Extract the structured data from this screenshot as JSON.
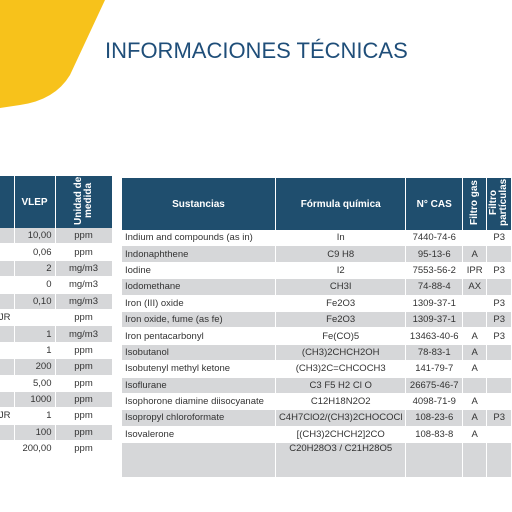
{
  "title": "INFORMACIONES TÉCNICAS",
  "left_table": {
    "headers": [
      "*",
      "VLEP",
      "Unidad de medida"
    ],
    "rows": [
      [
        null,
        "10,00",
        "ppm"
      ],
      [
        null,
        "0,06",
        "ppm"
      ],
      [
        null,
        "2",
        "mg/m3"
      ],
      [
        null,
        "0",
        "mg/m3"
      ],
      [
        null,
        "0,10",
        "mg/m3"
      ],
      [
        "JR",
        null,
        "ppm"
      ],
      [
        null,
        "1",
        "mg/m3"
      ],
      [
        null,
        "1",
        "ppm"
      ],
      [
        null,
        "200",
        "ppm"
      ],
      [
        null,
        "5,00",
        "ppm"
      ],
      [
        null,
        "1000",
        "ppm"
      ],
      [
        "JR",
        "1",
        "ppm"
      ],
      [
        null,
        "100",
        "ppm"
      ],
      [
        null,
        "200,00",
        "ppm"
      ]
    ]
  },
  "right_table": {
    "headers": [
      "Sustancias",
      "Fórmula química",
      "N° CAS",
      "Filtro gas",
      "Filtro partículas"
    ],
    "rows": [
      [
        "Indium and compounds (as in)",
        "In",
        "7440-74-6",
        null,
        "P3"
      ],
      [
        "Indonaphthene",
        "C9 H8",
        "95-13-6",
        "A",
        null
      ],
      [
        "Iodine",
        "I2",
        "7553-56-2",
        "IPR",
        "P3"
      ],
      [
        "Iodomethane",
        "CH3I",
        "74-88-4",
        "AX",
        null
      ],
      [
        "Iron (III) oxide",
        "Fe2O3",
        "1309-37-1",
        null,
        "P3"
      ],
      [
        "Iron oxide, fume (as fe)",
        "Fe2O3",
        "1309-37-1",
        null,
        "P3"
      ],
      [
        "Iron pentacarbonyl",
        "Fe(CO)5",
        "13463-40-6",
        "A",
        "P3"
      ],
      [
        "Isobutanol",
        "(CH3)2CHCH2OH",
        "78-83-1",
        "A",
        null
      ],
      [
        "Isobutenyl methyl ketone",
        "(CH3)2C=CHCOCH3",
        "141-79-7",
        "A",
        null
      ],
      [
        "Isoflurane",
        "C3 F5 H2 Cl O",
        "26675-46-7",
        null,
        null
      ],
      [
        "Isophorone diamine diisocyanate",
        "C12H18N2O2",
        "4098-71-9",
        "A",
        null
      ],
      [
        "Isopropyl chloroformate",
        "C4H7ClO2/(CH3)2CHOCOCl",
        "108-23-6",
        "A",
        "P3"
      ],
      [
        "Isovalerone",
        "[(CH3)2CHCH2]2CO",
        "108-83-8",
        "A",
        null
      ],
      [
        null,
        "C20H28O3 / C21H28O5",
        null,
        null,
        null
      ]
    ]
  }
}
